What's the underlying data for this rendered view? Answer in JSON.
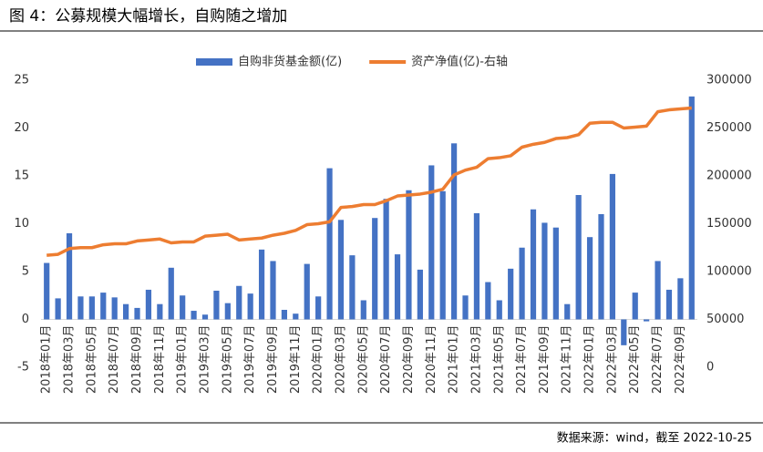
{
  "chart_data": {
    "type": "bar_line",
    "title": "图 4：公募规模大幅增长，自购随之增加",
    "source": "数据来源：wind，截至 2022-10-25",
    "categories": [
      "2018年01月",
      null,
      "2018年03月",
      null,
      "2018年05月",
      null,
      "2018年07月",
      null,
      "2018年09月",
      null,
      "2018年11月",
      null,
      "2019年01月",
      null,
      "2019年03月",
      null,
      "2019年05月",
      null,
      "2019年07月",
      null,
      "2019年09月",
      null,
      "2019年11月",
      null,
      "2020年01月",
      null,
      "2020年03月",
      null,
      "2020年05月",
      null,
      "2020年07月",
      null,
      "2020年09月",
      null,
      "2020年11月",
      null,
      "2021年01月",
      null,
      "2021年03月",
      null,
      "2021年05月",
      null,
      "2021年07月",
      null,
      "2021年09月",
      null,
      "2021年11月",
      null,
      "2022年01月",
      null,
      "2022年03月",
      null,
      "2022年05月",
      null,
      "2022年07月",
      null,
      "2022年09月",
      null
    ],
    "series": [
      {
        "name": "自购非货基金额(亿)",
        "color": "#4472c4",
        "type": "bar",
        "values": [
          5.9,
          2.2,
          9.0,
          2.4,
          2.4,
          2.8,
          2.3,
          1.6,
          1.2,
          3.1,
          1.6,
          5.4,
          2.5,
          0.9,
          0.5,
          3.0,
          1.7,
          3.5,
          2.7,
          7.3,
          6.1,
          1.0,
          0.6,
          5.8,
          2.4,
          15.8,
          10.4,
          6.7,
          2.0,
          10.6,
          12.6,
          6.8,
          13.5,
          5.2,
          16.1,
          13.4,
          18.4,
          2.5,
          11.1,
          3.9,
          2.0,
          5.3,
          7.5,
          11.5,
          10.1,
          9.6,
          1.6,
          13.0,
          8.6,
          11.0,
          15.2,
          -2.7,
          2.8,
          -0.2,
          6.1,
          3.1,
          4.3,
          23.3
        ]
      },
      {
        "name": "资产净值(亿)-右轴",
        "color": "#ed7d31",
        "type": "line",
        "axis": "y2",
        "values": [
          117000,
          118000,
          124000,
          125000,
          125000,
          128000,
          129000,
          129000,
          132000,
          133000,
          134000,
          130000,
          131000,
          131000,
          137000,
          138000,
          139000,
          133000,
          134000,
          135000,
          138000,
          140000,
          143000,
          149000,
          150000,
          152000,
          167000,
          168000,
          170000,
          170000,
          174000,
          179000,
          180000,
          181000,
          183000,
          186000,
          201000,
          206000,
          209000,
          218000,
          219000,
          221000,
          230000,
          233000,
          235000,
          239000,
          240000,
          243000,
          255000,
          256000,
          256000,
          250000,
          251000,
          252000,
          267000,
          269000,
          270000,
          271000
        ]
      }
    ],
    "ylim": [
      -5,
      25
    ],
    "yticks": [
      -5,
      0,
      5,
      10,
      15,
      20,
      25
    ],
    "y2lim": [
      0,
      300000
    ],
    "y2ticks": [
      0,
      50000,
      100000,
      150000,
      200000,
      250000,
      300000
    ],
    "legend": "top"
  }
}
